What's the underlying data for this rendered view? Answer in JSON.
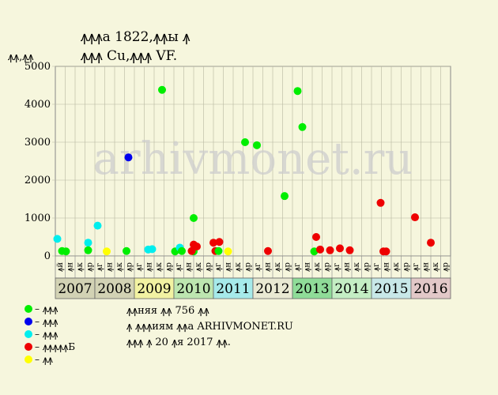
{
  "header": {
    "title_line1": "ꙟꙟꙟa 1822,ꙟꙟы ꙟ",
    "title_line2": "ꙟꙟꙟ Cu,ꙟꙟꙟ VF.",
    "y_unit": "ꙟꙟ,ꙟꙟ"
  },
  "watermark": "arhivmonet.ru",
  "legend": [
    {
      "label": "– ꙟꙟꙟ",
      "color": "#00ee00"
    },
    {
      "label": "– ꙟꙟꙟ",
      "color": "#0000ee"
    },
    {
      "label": "– ꙟꙟꙟ",
      "color": "#00eeee"
    },
    {
      "label": "– ꙟꙟꙟꙟꙟБ",
      "color": "#ee0000"
    },
    {
      "label": "– ꙟꙟ",
      "color": "#ffff00"
    }
  ],
  "info": {
    "line1": "ꙟꙟняя ꙟꙟ 756 ꙟꙟ",
    "line2": "ꙟ ꙟꙟꙟиям ꙟꙟa ARHIVMONET.RU",
    "line3": "ꙟꙟꙟ ꙟ 20 ꙟя 2017 ꙟꙟ."
  },
  "chart_data": {
    "type": "scatter",
    "ylim": [
      0,
      5000
    ],
    "yticks": [
      0,
      1000,
      2000,
      3000,
      4000,
      5000
    ],
    "years": [
      "2007",
      "2008",
      "2009",
      "2010",
      "2011",
      "2012",
      "2013",
      "2014",
      "2015",
      "2016"
    ],
    "year_colors": [
      "#d2d2b4",
      "#d2d2b4",
      "#f2f2a2",
      "#bde6b0",
      "#a6eaea",
      "#e9e9d3",
      "#8fdc98",
      "#c4eec4",
      "#c8e8e8",
      "#e2c8c8"
    ],
    "quarter_labels": [
      "ꙟй",
      "ꙟн",
      "ꙟк",
      "ꙟр",
      "ꙟг",
      "ꙟн",
      "ꙟк",
      "ꙟр",
      "ꙟг",
      "ꙟн",
      "ꙟк",
      "ꙟр",
      "ꙟг",
      "ꙟн",
      "ꙟк",
      "ꙟр",
      "ꙟг",
      "ꙟн",
      "ꙟк",
      "ꙟр",
      "ꙟг",
      "ꙟн",
      "ꙟк",
      "ꙟр",
      "ꙟг",
      "ꙟн",
      "ꙟк",
      "ꙟр",
      "ꙟг",
      "ꙟн",
      "ꙟк",
      "ꙟр",
      "ꙟг",
      "ꙟн",
      "ꙟк",
      "ꙟр",
      "ꙟг",
      "ꙟн",
      "ꙟк",
      "ꙟр"
    ],
    "x_start": 2007.25,
    "x_end": 2017.25,
    "points": [
      {
        "x": 2007.3,
        "y": 450,
        "c": "#00eeee"
      },
      {
        "x": 2007.42,
        "y": 130,
        "c": "#00ee00"
      },
      {
        "x": 2007.52,
        "y": 120,
        "c": "#00ee00"
      },
      {
        "x": 2008.08,
        "y": 350,
        "c": "#00eeee"
      },
      {
        "x": 2008.08,
        "y": 150,
        "c": "#00ee00"
      },
      {
        "x": 2008.32,
        "y": 800,
        "c": "#00eeee"
      },
      {
        "x": 2008.55,
        "y": 120,
        "c": "#ffff00"
      },
      {
        "x": 2009.05,
        "y": 130,
        "c": "#00ee00"
      },
      {
        "x": 2009.1,
        "y": 2600,
        "c": "#0000ee"
      },
      {
        "x": 2009.6,
        "y": 170,
        "c": "#00eeee"
      },
      {
        "x": 2009.7,
        "y": 180,
        "c": "#00eeee"
      },
      {
        "x": 2009.95,
        "y": 4380,
        "c": "#00ee00"
      },
      {
        "x": 2010.28,
        "y": 120,
        "c": "#00ee00"
      },
      {
        "x": 2010.4,
        "y": 220,
        "c": "#00eeee"
      },
      {
        "x": 2010.45,
        "y": 130,
        "c": "#00ee00"
      },
      {
        "x": 2010.75,
        "y": 1000,
        "c": "#00ee00"
      },
      {
        "x": 2010.75,
        "y": 120,
        "c": "#00ee00"
      },
      {
        "x": 2010.7,
        "y": 130,
        "c": "#ee0000"
      },
      {
        "x": 2010.75,
        "y": 300,
        "c": "#ee0000"
      },
      {
        "x": 2010.83,
        "y": 250,
        "c": "#ee0000"
      },
      {
        "x": 2011.25,
        "y": 350,
        "c": "#ee0000"
      },
      {
        "x": 2011.3,
        "y": 130,
        "c": "#ee0000"
      },
      {
        "x": 2011.38,
        "y": 130,
        "c": "#00ee00"
      },
      {
        "x": 2011.4,
        "y": 370,
        "c": "#ee0000"
      },
      {
        "x": 2011.62,
        "y": 120,
        "c": "#ffff00"
      },
      {
        "x": 2012.05,
        "y": 3000,
        "c": "#00ee00"
      },
      {
        "x": 2012.35,
        "y": 2920,
        "c": "#00ee00"
      },
      {
        "x": 2012.63,
        "y": 130,
        "c": "#ee0000"
      },
      {
        "x": 2013.05,
        "y": 1580,
        "c": "#00ee00"
      },
      {
        "x": 2013.38,
        "y": 4350,
        "c": "#00ee00"
      },
      {
        "x": 2013.5,
        "y": 3400,
        "c": "#00ee00"
      },
      {
        "x": 2013.8,
        "y": 120,
        "c": "#00ee00"
      },
      {
        "x": 2013.85,
        "y": 500,
        "c": "#ee0000"
      },
      {
        "x": 2013.95,
        "y": 170,
        "c": "#ee0000"
      },
      {
        "x": 2014.2,
        "y": 150,
        "c": "#ee0000"
      },
      {
        "x": 2014.45,
        "y": 200,
        "c": "#ee0000"
      },
      {
        "x": 2014.7,
        "y": 150,
        "c": "#ee0000"
      },
      {
        "x": 2015.48,
        "y": 1400,
        "c": "#ee0000"
      },
      {
        "x": 2015.55,
        "y": 120,
        "c": "#ee0000"
      },
      {
        "x": 2015.62,
        "y": 120,
        "c": "#ee0000"
      },
      {
        "x": 2016.35,
        "y": 1020,
        "c": "#ee0000"
      },
      {
        "x": 2016.75,
        "y": 350,
        "c": "#ee0000"
      }
    ]
  }
}
